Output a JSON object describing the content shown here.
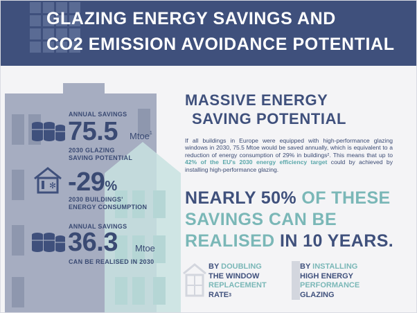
{
  "header": {
    "title_line1": "Glazing energy savings and",
    "title_line2": "CO2 emission avoidance potential"
  },
  "left": {
    "stat1": {
      "label_top": "Annual savings",
      "value": "75.5",
      "unit": "Mtoe",
      "footnote": "1",
      "label_bottom_1": "2030 glazing",
      "label_bottom_2": "saving potential"
    },
    "stat2": {
      "value": "-29",
      "unit": "%",
      "label_1": "2030 buildings'",
      "label_2": "energy consumption"
    },
    "stat3": {
      "label_top": "Annual savings",
      "value": "36.3",
      "unit": "Mtoe",
      "label_bottom": "can be realised in 2030"
    }
  },
  "right": {
    "heading_line1": "Massive energy",
    "heading_line2": "saving potential",
    "paragraph_part1": "If all buildings in Europe were equipped with high-performance glazing windows in 2030, 75.5 Mtoe would be saved annually, which is equivalent to a reduction of energy consumption of 29% in buildings². This means that up to ",
    "paragraph_highlight": "42% of the EU's 2030 energy efficiency target",
    "paragraph_part2": " could by achieved by installing high-performance glazing.",
    "nearly_line1_a": "Nearly",
    "nearly_line1_b": "50%",
    "nearly_line1_c": "of these",
    "nearly_line2": "savings can be",
    "nearly_line3_a": "realised",
    "nearly_line3_b": "in",
    "nearly_line3_c": "10 years."
  },
  "bottom": {
    "left_1": "By",
    "left_2": "doubling",
    "left_3": "the window",
    "left_4": "replacement",
    "left_5": "rate",
    "left_sup": "3",
    "right_1": "By",
    "right_2": "installing",
    "right_3": "high energy",
    "right_4": "performance",
    "right_5": "glazing"
  },
  "colors": {
    "navy": "#3f507c",
    "teal": "#7ab7b7",
    "building_gray": "#a6adc1",
    "building_teal": "#c8e2e1"
  }
}
